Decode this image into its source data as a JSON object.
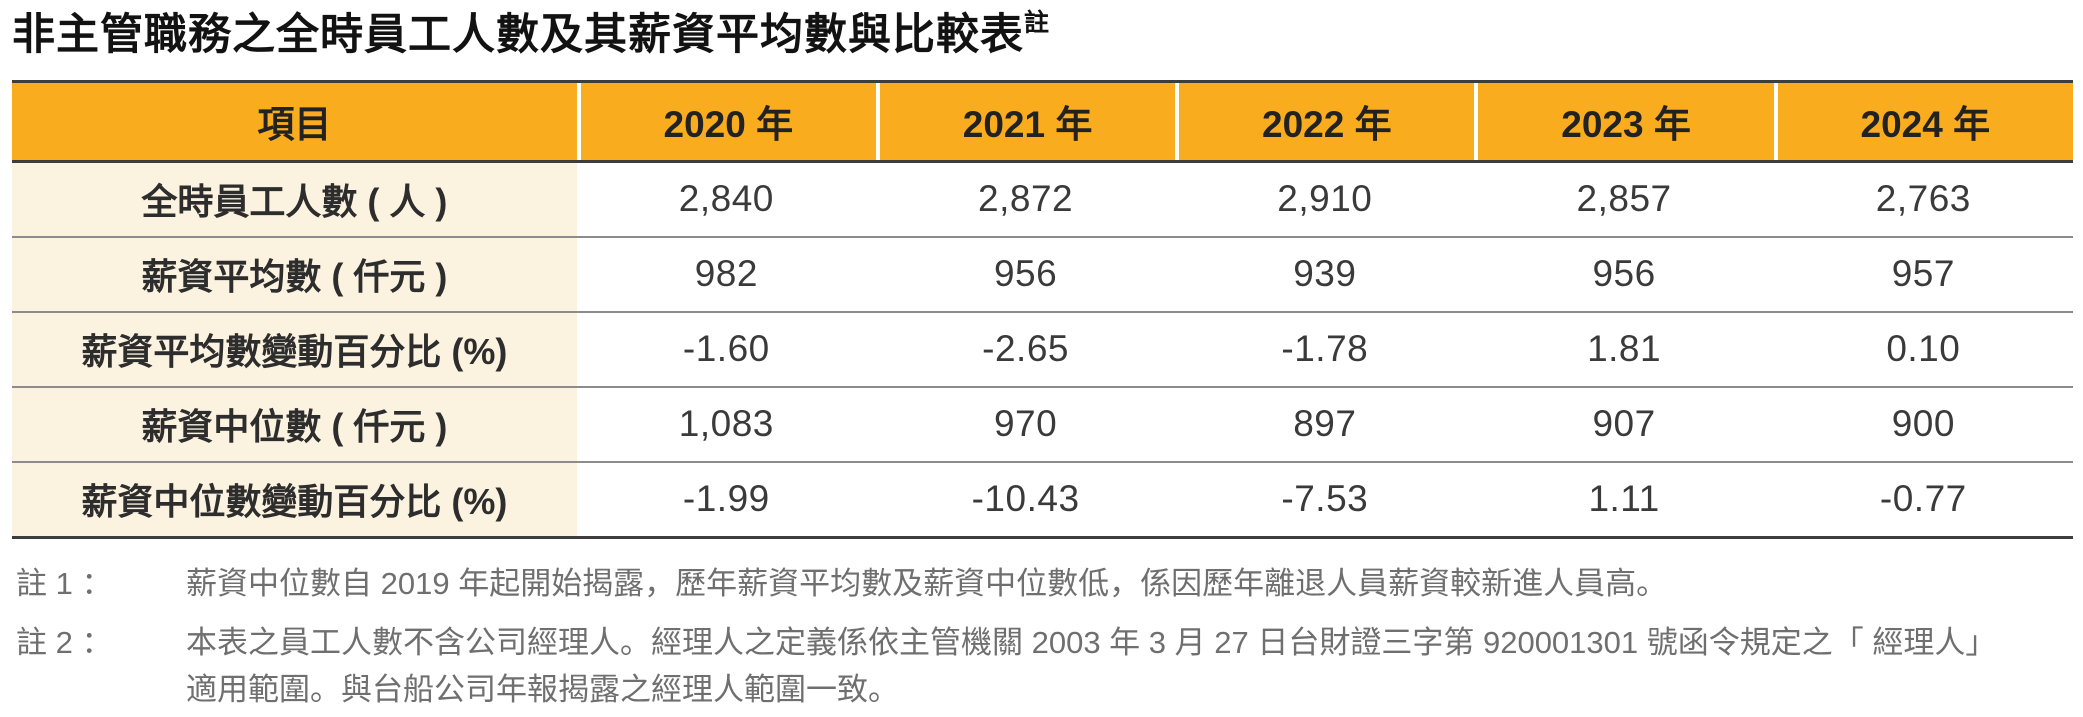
{
  "title": {
    "text": "非主管職務之全時員工人數及其薪資平均數與比較表",
    "superscript": "註"
  },
  "table": {
    "colors": {
      "header_bg": "#F8AC1E",
      "label_bg": "#FBF2E0",
      "dark_border": "#3D3D3D",
      "row_line": "#8C8C8C"
    },
    "header": [
      "項目",
      "2020 年",
      "2021 年",
      "2022 年",
      "2023 年",
      "2024 年"
    ],
    "rows": [
      {
        "label": "全時員工人數 ( 人 )",
        "values": [
          "2,840",
          "2,872",
          "2,910",
          "2,857",
          "2,763"
        ]
      },
      {
        "label": "薪資平均數 ( 仟元 )",
        "values": [
          "982",
          "956",
          "939",
          "956",
          "957"
        ]
      },
      {
        "label": "薪資平均數變動百分比 (%)",
        "values": [
          "-1.60",
          "-2.65",
          "-1.78",
          "1.81",
          "0.10"
        ]
      },
      {
        "label": "薪資中位數 ( 仟元 )",
        "values": [
          "1,083",
          "970",
          "897",
          "907",
          "900"
        ]
      },
      {
        "label": "薪資中位數變動百分比 (%)",
        "values": [
          "-1.99",
          "-10.43",
          "-7.53",
          "1.11",
          "-0.77"
        ]
      }
    ]
  },
  "chart_data": {
    "type": "table",
    "title": "非主管職務之全時員工人數及其薪資平均數與比較表",
    "categories": [
      "2020",
      "2021",
      "2022",
      "2023",
      "2024"
    ],
    "series": [
      {
        "name": "全時員工人數 ( 人 )",
        "values": [
          2840,
          2872,
          2910,
          2857,
          2763
        ]
      },
      {
        "name": "薪資平均數 ( 仟元 )",
        "values": [
          982,
          956,
          939,
          956,
          957
        ]
      },
      {
        "name": "薪資平均數變動百分比 (%)",
        "values": [
          -1.6,
          -2.65,
          -1.78,
          1.81,
          0.1
        ]
      },
      {
        "name": "薪資中位數 ( 仟元 )",
        "values": [
          1083,
          970,
          897,
          907,
          900
        ]
      },
      {
        "name": "薪資中位數變動百分比 (%)",
        "values": [
          -1.99,
          -10.43,
          -7.53,
          1.11,
          -0.77
        ]
      }
    ]
  },
  "footnotes": [
    {
      "label": "註 1 ：",
      "lines": [
        "薪資中位數自 2019 年起開始揭露，歷年薪資平均數及薪資中位數低，係因歷年離退人員薪資較新進人員高。"
      ]
    },
    {
      "label": "註 2 ：",
      "lines": [
        "本表之員工人數不含公司經理人。經理人之定義係依主管機關 2003 年 3 月 27 日台財證三字第 920001301 號函令規定之「 經理人」",
        "適用範圍。與台船公司年報揭露之經理人範圍一致。"
      ]
    }
  ]
}
